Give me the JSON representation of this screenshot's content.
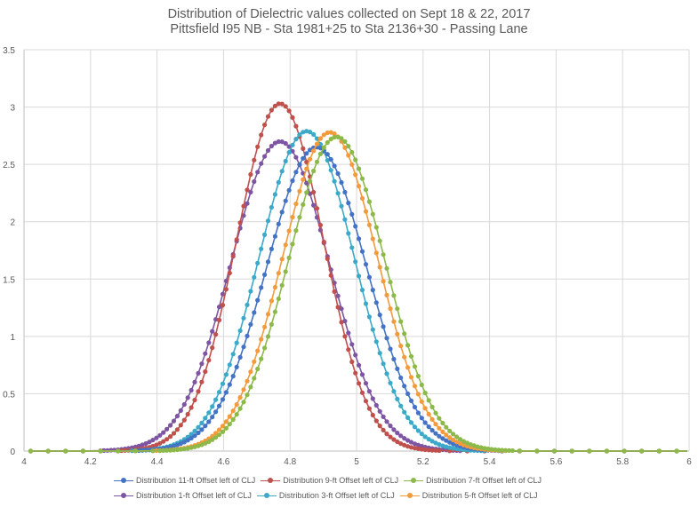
{
  "chart_data": {
    "type": "line",
    "title": "Distribution of Dielectric values collected on Sept 18 & 22, 2017",
    "subtitle": "Pittsfield I95 NB - Sta 1981+25 to Sta 2136+30 - Passing Lane",
    "xlabel": "",
    "ylabel": "",
    "xlim": [
      4,
      6
    ],
    "ylim": [
      0,
      3.5
    ],
    "x_ticks": [
      "4",
      "4.2",
      "4.4",
      "4.6",
      "4.8",
      "5",
      "5.2",
      "5.4",
      "5.6",
      "5.8",
      "6"
    ],
    "y_ticks": [
      "0",
      "0.5",
      "1",
      "1.5",
      "2",
      "2.5",
      "3",
      "3.5"
    ],
    "grid": true,
    "legend_position": "bottom",
    "series": [
      {
        "name": "Distribution 11-ft Offset left of CLJ",
        "color": "#4472C4",
        "mean": 4.88,
        "sd": 0.15,
        "peak": 2.65
      },
      {
        "name": "Distribution 9-ft Offset left of CLJ",
        "color": "#C0504D",
        "mean": 4.77,
        "sd": 0.131,
        "peak": 3.03
      },
      {
        "name": "Distribution 7-ft Offset left of CLJ",
        "color": "#8DB94B",
        "mean": 4.94,
        "sd": 0.145,
        "peak": 2.74
      },
      {
        "name": "Distribution 1-ft Offset left of CLJ",
        "color": "#7D55A3",
        "mean": 4.77,
        "sd": 0.148,
        "peak": 2.7
      },
      {
        "name": "Distribution 3-ft Offset left of CLJ",
        "color": "#3BA9C7",
        "mean": 4.85,
        "sd": 0.143,
        "peak": 2.79
      },
      {
        "name": "Distribution 5-ft Offset left of CLJ",
        "color": "#F29B3D",
        "mean": 4.92,
        "sd": 0.143,
        "peak": 2.78
      }
    ],
    "sample_points": {
      "x": [
        4.4,
        4.5,
        4.6,
        4.7,
        4.8,
        4.9,
        5.0,
        5.1,
        5.2,
        5.3
      ],
      "Distribution 11-ft Offset left of CLJ": [
        0.02,
        0.11,
        0.44,
        1.27,
        2.3,
        2.64,
        1.92,
        0.9,
        0.27,
        0.05
      ],
      "Distribution 9-ft Offset left of CLJ": [
        0.05,
        0.36,
        1.39,
        2.65,
        2.97,
        1.86,
        0.65,
        0.13,
        0.02,
        0.0
      ],
      "Distribution 7-ft Offset left of CLJ": [
        0.0,
        0.03,
        0.17,
        0.66,
        1.63,
        2.54,
        2.51,
        1.58,
        0.62,
        0.16
      ],
      "Distribution 1-ft Offset left of CLJ": [
        0.06,
        0.36,
        1.19,
        2.41,
        2.66,
        1.71,
        0.66,
        0.15,
        0.02,
        0.0
      ],
      "Distribution 3-ft Offset left of CLJ": [
        0.01,
        0.07,
        0.44,
        1.41,
        2.51,
        2.64,
        1.6,
        0.56,
        0.12,
        0.01
      ],
      "Distribution 5-ft Offset left of CLJ": [
        0.0,
        0.04,
        0.22,
        0.86,
        1.94,
        2.74,
        2.3,
        1.22,
        0.38,
        0.07
      ]
    }
  },
  "legend": {
    "row1": [
      "Distribution 11-ft Offset left of CLJ",
      "Distribution 9-ft Offset left of CLJ",
      "Distribution 7-ft Offset left of CLJ"
    ],
    "row2": [
      "Distribution 1-ft Offset left of CLJ",
      "Distribution 3-ft Offset left of CLJ",
      "Distribution 5-ft Offset left of CLJ"
    ]
  }
}
